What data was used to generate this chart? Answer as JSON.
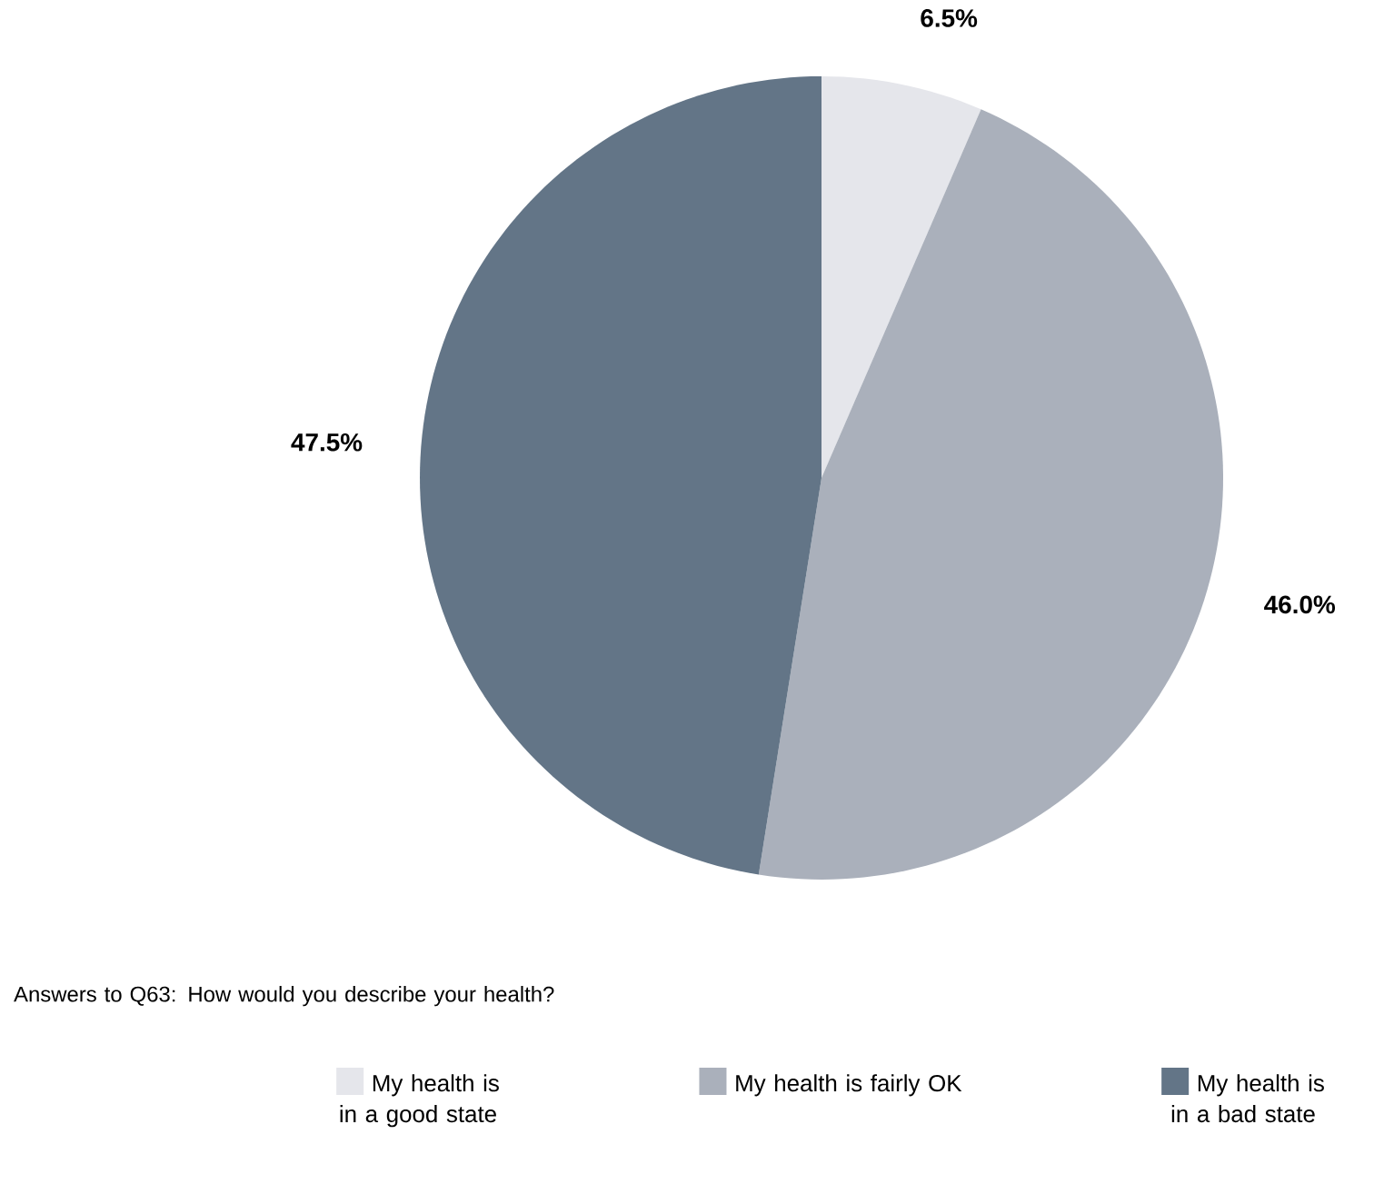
{
  "chart_data": {
    "type": "pie",
    "categories": [
      "My health is in a good state",
      "My health is fairly OK",
      "My health is in a bad state"
    ],
    "values": [
      6.5,
      46.0,
      47.5
    ],
    "value_labels": [
      "6.5%",
      "46.0%",
      "47.5%"
    ],
    "colors": [
      "#e5e6eb",
      "#aab0bb",
      "#637587"
    ],
    "annotations": [
      "Answers to Q63: How would you describe your health?"
    ],
    "legend": "bottom"
  }
}
